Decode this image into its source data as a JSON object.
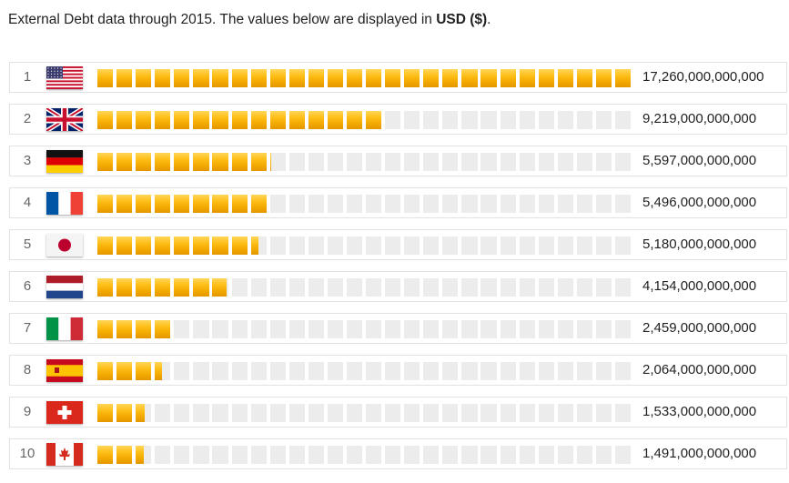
{
  "intro": {
    "text_before": "External Debt data through 2015. The values below are displayed in ",
    "unit_bold": "USD ($)",
    "text_after": "."
  },
  "chart_data": {
    "type": "bar",
    "title": "",
    "unit": "USD ($)",
    "max_value": 17260000000000,
    "rows": [
      {
        "rank": "1",
        "country_flag": "usa",
        "value": 17260000000000,
        "label": "17,260,000,000,000"
      },
      {
        "rank": "2",
        "country_flag": "united-kingdom",
        "value": 9219000000000,
        "label": "9,219,000,000,000"
      },
      {
        "rank": "3",
        "country_flag": "germany",
        "value": 5597000000000,
        "label": "5,597,000,000,000"
      },
      {
        "rank": "4",
        "country_flag": "france",
        "value": 5496000000000,
        "label": "5,496,000,000,000"
      },
      {
        "rank": "5",
        "country_flag": "japan",
        "value": 5180000000000,
        "label": "5,180,000,000,000"
      },
      {
        "rank": "6",
        "country_flag": "netherlands",
        "value": 4154000000000,
        "label": "4,154,000,000,000"
      },
      {
        "rank": "7",
        "country_flag": "italy",
        "value": 2459000000000,
        "label": "2,459,000,000,000"
      },
      {
        "rank": "8",
        "country_flag": "spain",
        "value": 2064000000000,
        "label": "2,064,000,000,000"
      },
      {
        "rank": "9",
        "country_flag": "switzerland",
        "value": 1533000000000,
        "label": "1,533,000,000,000"
      },
      {
        "rank": "10",
        "country_flag": "canada",
        "value": 1491000000000,
        "label": "1,491,000,000,000"
      }
    ]
  }
}
